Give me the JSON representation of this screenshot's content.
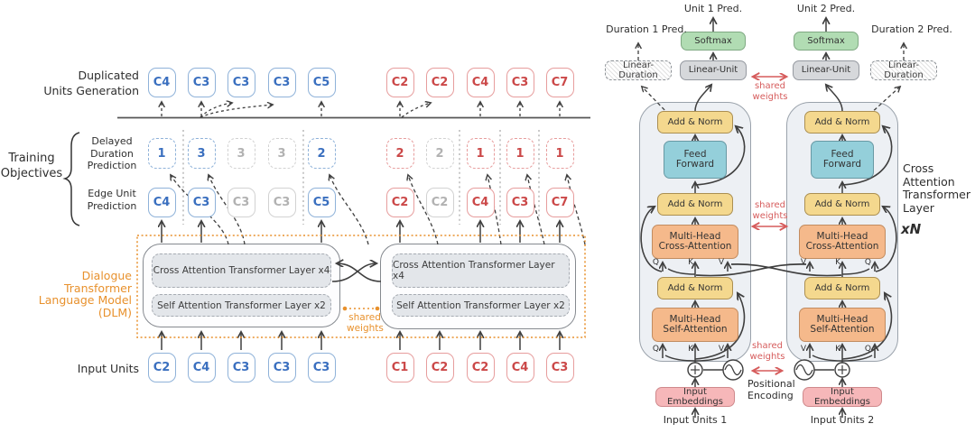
{
  "colors": {
    "blue": "#3a6fbf",
    "blue_border": "#8fb2d9",
    "red": "#cb4848",
    "red_border": "#e79d9d",
    "gray": "#b2b2b2",
    "gray_border": "#d2d2d2",
    "orange": "#e8912d",
    "shared_red": "#d65c5c"
  },
  "left": {
    "gen_label": [
      "Duplicated",
      "Units Generation"
    ],
    "training_label": [
      "Training",
      "Objectives"
    ],
    "duration_label": [
      "Delayed",
      "Duration",
      "Prediction"
    ],
    "edge_label": [
      "Edge Unit",
      "Prediction"
    ],
    "dlm_label": [
      "Dialogue Transformer",
      "Language Model",
      "(DLM)"
    ],
    "input_label": "Input Units",
    "cross_layer": "Cross Attention Transformer Layer x4",
    "self_layer": "Self Attention Transformer Layer x2",
    "shared_weights": [
      "shared",
      "weights"
    ],
    "speakers": [
      {
        "name": "speaker-1",
        "color": "blue",
        "gen": [
          "C4",
          "C3",
          "C3",
          "C3",
          "C5"
        ],
        "duration": [
          "1",
          "3",
          "3",
          "3",
          "2"
        ],
        "duration_gray": [
          false,
          false,
          true,
          true,
          false
        ],
        "edge": [
          "C4",
          "C3",
          "C3",
          "C3",
          "C5"
        ],
        "edge_gray": [
          false,
          false,
          true,
          true,
          false
        ],
        "input": [
          "C2",
          "C4",
          "C3",
          "C3",
          "C3"
        ]
      },
      {
        "name": "speaker-2",
        "color": "red",
        "gen": [
          "C2",
          "C2",
          "C4",
          "C3",
          "C7"
        ],
        "duration": [
          "2",
          "2",
          "1",
          "1",
          "1"
        ],
        "duration_gray": [
          false,
          true,
          false,
          false,
          false
        ],
        "edge": [
          "C2",
          "C2",
          "C4",
          "C3",
          "C7"
        ],
        "edge_gray": [
          false,
          true,
          false,
          false,
          false
        ],
        "input": [
          "C1",
          "C2",
          "C2",
          "C4",
          "C3"
        ]
      }
    ]
  },
  "right": {
    "unit_preds": [
      "Unit 1 Pred.",
      "Unit 2 Pred."
    ],
    "duration_preds": [
      "Duration 1 Pred.",
      "Duration 2 Pred."
    ],
    "softmax": "Softmax",
    "linear_unit": "Linear-Unit",
    "linear_duration": "Linear-Duration",
    "add_norm": "Add & Norm",
    "feed_forward": [
      "Feed",
      "Forward"
    ],
    "cross_attention": [
      "Multi-Head",
      "Cross-Attention"
    ],
    "self_attention": [
      "Multi-Head",
      "Self-Attention"
    ],
    "qkv": [
      [
        "Q",
        "K",
        "V"
      ],
      [
        "V",
        "K",
        "Q"
      ]
    ],
    "input_embeddings": "Input Embeddings",
    "input_units": [
      "Input Units 1",
      "Input Units 2"
    ],
    "shared_weights": [
      "shared",
      "weights"
    ],
    "positional_encoding": [
      "Positional",
      "Encoding"
    ],
    "layer_label": [
      "Cross",
      "Attention",
      "Transformer",
      "Layer"
    ],
    "layer_repeat": "xN"
  }
}
